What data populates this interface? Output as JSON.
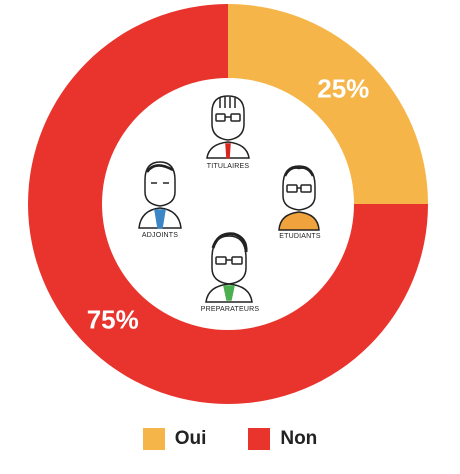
{
  "chart_data": {
    "type": "pie",
    "donut": true,
    "categories": [
      "Oui",
      "Non"
    ],
    "values": [
      25,
      75
    ],
    "value_labels": [
      "25%",
      "75%"
    ],
    "colors": [
      "#F6B548",
      "#E9342D"
    ],
    "legend_position": "bottom",
    "center_figure_labels": [
      "TITULAIRES",
      "ETUDIANTS",
      "ADJOINTS",
      "PREPARATEURS"
    ]
  }
}
